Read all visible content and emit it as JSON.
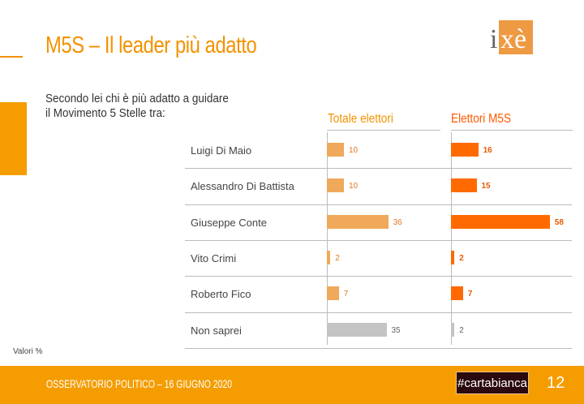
{
  "title": "M5S – Il leader più adatto",
  "question": "Secondo lei chi è più adatto a guidare il Movimento 5 Stelle tra:",
  "logo_text": "ixè",
  "footer": {
    "text": "OSSERVATORIO POLITICO – 16 GIUGNO 2020",
    "tag": "#cartabianca",
    "page": "12"
  },
  "note": "Valori %",
  "colors": {
    "total": "#F0A95A",
    "m5s": "#FF6A00",
    "none": "#C4C4C4",
    "accent": "#F39200"
  },
  "chart_data": {
    "type": "bar",
    "categories": [
      "Luigi Di Maio",
      "Alessandro Di Battista",
      "Giuseppe Conte",
      "Vito Crimi",
      "Roberto Fico",
      "Non saprei"
    ],
    "series": [
      {
        "name": "Totale elettori",
        "values": [
          10,
          10,
          36,
          2,
          7,
          35
        ]
      },
      {
        "name": "Elettori M5S",
        "values": [
          16,
          15,
          58,
          2,
          7,
          2
        ]
      }
    ],
    "unit": "%"
  }
}
